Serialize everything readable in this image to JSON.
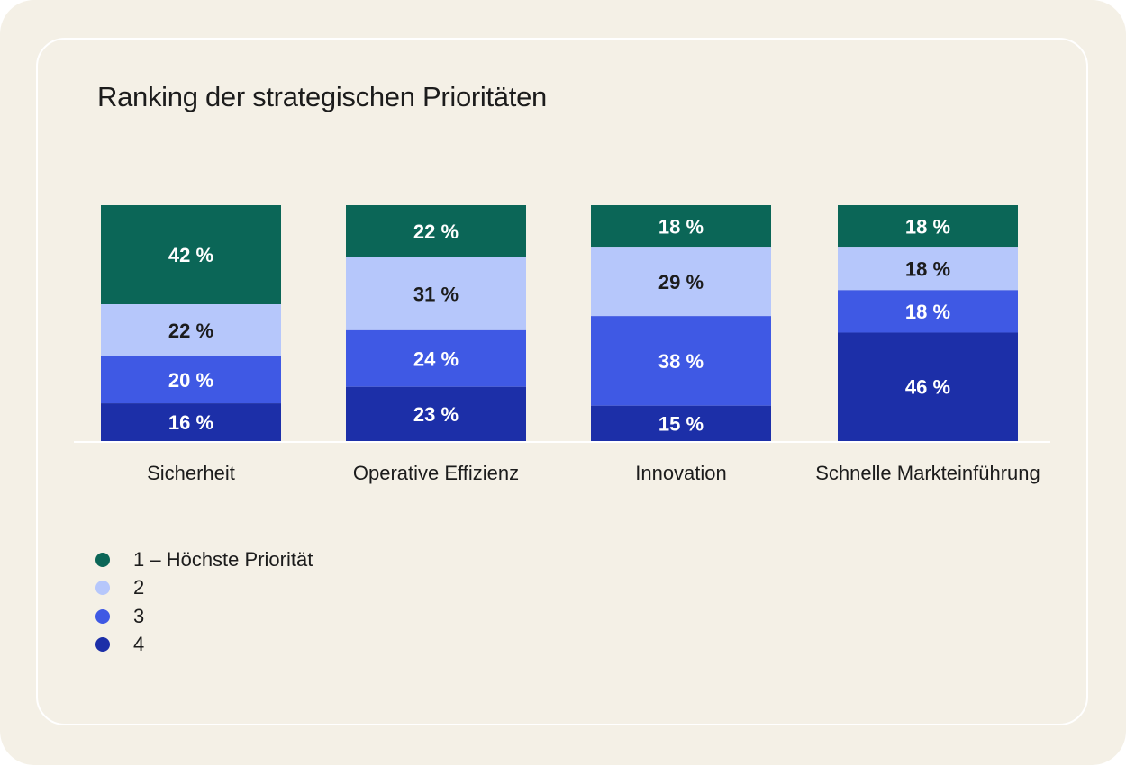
{
  "chart_data": {
    "type": "bar",
    "stacked": true,
    "title": "Ranking der strategischen Prioritäten",
    "xlabel": "",
    "ylabel": "",
    "ylim": [
      0,
      100
    ],
    "grid": false,
    "value_suffix": " %",
    "categories": [
      "Sicherheit",
      "Operative Effizienz",
      "Innovation",
      "Schnelle Markteinführung"
    ],
    "series": [
      {
        "name": "1 – Höchste Priorität",
        "color": "#0b6657",
        "label_color": "#ffffff",
        "values": [
          42,
          22,
          18,
          18
        ]
      },
      {
        "name": "2",
        "color": "#b6c7fb",
        "label_color": "#1c1c1c",
        "values": [
          22,
          31,
          29,
          18
        ]
      },
      {
        "name": "3",
        "color": "#3f59e4",
        "label_color": "#ffffff",
        "values": [
          20,
          24,
          38,
          18
        ]
      },
      {
        "name": "4",
        "color": "#1c2fa8",
        "label_color": "#ffffff",
        "values": [
          16,
          23,
          15,
          46
        ]
      }
    ],
    "legend_position": "bottom-left"
  }
}
